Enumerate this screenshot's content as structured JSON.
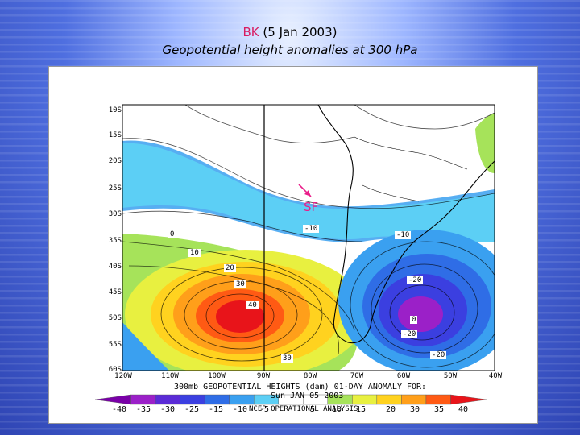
{
  "header": {
    "code": "BK",
    "date": "(5 Jan 2003)",
    "subtitle": "Geopotential height anomalies at 300 hPa"
  },
  "map": {
    "lat_labels": [
      "10S",
      "15S",
      "20S",
      "25S",
      "30S",
      "35S",
      "40S",
      "45S",
      "50S",
      "55S",
      "60S"
    ],
    "lon_labels": [
      "120W",
      "110W",
      "100W",
      "90W",
      "80W",
      "70W",
      "60W",
      "50W",
      "40W"
    ],
    "contour_labels": [
      "0",
      "10",
      "20",
      "30",
      "40",
      "30",
      "-10",
      "-10",
      "-20",
      "-20",
      "-20",
      "0"
    ],
    "marker": "SF",
    "caption_line1": "300mb GEOPOTENTIAL HEIGHTS (dam)   01-DAY ANOMALY FOR:",
    "caption_line2": "Sun JAN 05 2003",
    "caption_line3": "NCEP OPERATIONAL ANALYSIS"
  },
  "colorbar": {
    "ticks": [
      "-40",
      "-35",
      "-30",
      "-25",
      "-15",
      "-10",
      "-5",
      "5",
      "10",
      "15",
      "20",
      "30",
      "35",
      "40"
    ],
    "colors": [
      "#7a00a8",
      "#9b20c8",
      "#5a2bd6",
      "#3b3fe0",
      "#2f6de6",
      "#3aa0f0",
      "#5ccff5",
      "#ffffff",
      "#ffffff",
      "#a6e35a",
      "#e8f040",
      "#ffd21f",
      "#ff9f1a",
      "#ff5a14",
      "#e8141a"
    ]
  }
}
